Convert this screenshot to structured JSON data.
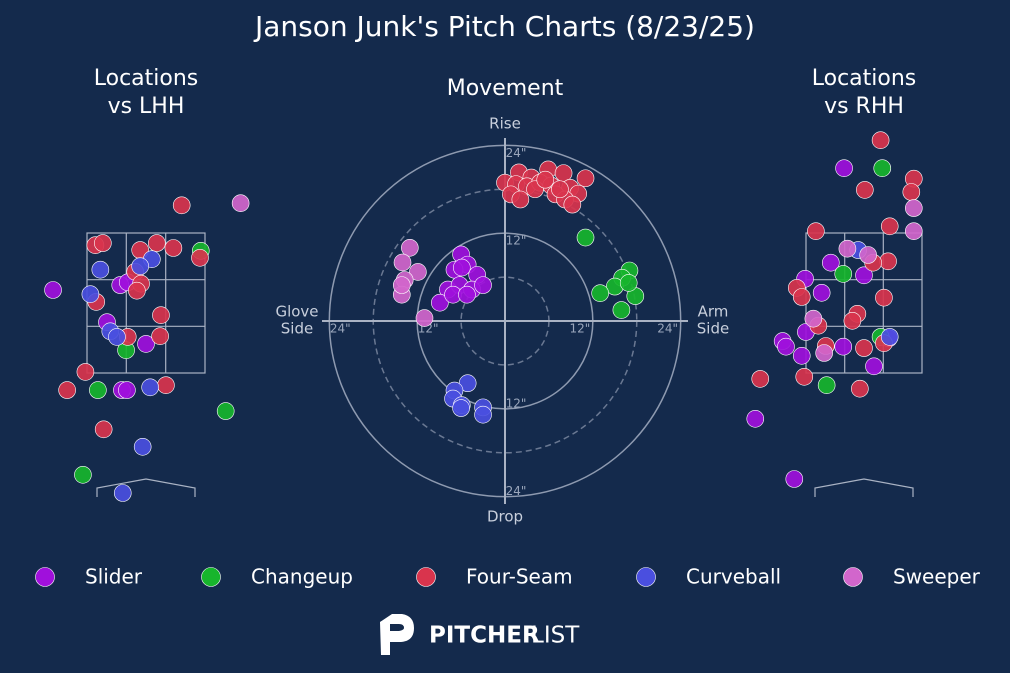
{
  "title": "Janson Junk's Pitch Charts (8/23/25)",
  "brand": [
    "PITCHER",
    "LIST"
  ],
  "chart_data": [
    {
      "type": "scatter",
      "title": [
        "Locations",
        "vs LHH"
      ],
      "xlim": [
        -1.3,
        1.3
      ],
      "ylim": [
        -0.3,
        5
      ],
      "series": [
        {
          "name": "Slider",
          "color": "#a010dc",
          "x": [
            -1.12,
            -0.31,
            -0.22,
            -0.47,
            0.0,
            -0.29,
            -0.23
          ],
          "y": [
            2.7,
            2.77,
            2.81,
            2.24,
            1.93,
            1.27,
            1.27
          ]
        },
        {
          "name": "Changeup",
          "color": "#17b52c",
          "x": [
            0.66,
            -0.24,
            -0.58,
            0.96,
            -0.76
          ],
          "y": [
            3.26,
            1.84,
            1.27,
            0.97,
            0.06
          ]
        },
        {
          "name": "Four-Seam",
          "color": "#d9344d",
          "x": [
            0.43,
            -0.61,
            -0.52,
            0.13,
            0.33,
            -0.07,
            0.65,
            -0.13,
            -0.06,
            -0.11,
            -0.6,
            0.18,
            -0.22,
            0.17,
            -0.73,
            -0.95,
            0.24,
            -0.51
          ],
          "y": [
            3.91,
            3.34,
            3.37,
            3.37,
            3.3,
            3.27,
            3.16,
            2.96,
            2.79,
            2.69,
            2.53,
            2.34,
            2.03,
            2.04,
            1.53,
            1.27,
            1.34,
            0.71
          ]
        },
        {
          "name": "Curveball",
          "color": "#4a4fdf",
          "x": [
            -0.55,
            0.07,
            -0.07,
            -0.67,
            -0.43,
            -0.35,
            0.05,
            -0.04,
            -0.28
          ],
          "y": [
            2.99,
            3.14,
            3.04,
            2.64,
            2.11,
            2.03,
            1.31,
            0.46,
            -0.2
          ]
        },
        {
          "name": "Sweeper",
          "color": "#d266cc",
          "x": [
            1.14
          ],
          "y": [
            3.94
          ]
        }
      ]
    },
    {
      "type": "movement",
      "title": [
        "Movement"
      ],
      "rlim": [
        0,
        25
      ],
      "rticks": [
        {
          "value": 12,
          "label": "12\""
        },
        {
          "value": 24,
          "label": "24\""
        }
      ],
      "minor_rticks": [
        6,
        18
      ],
      "labels": {
        "top": "Rise",
        "bottom": "Drop",
        "left": [
          "Glove",
          "Side"
        ],
        "right": [
          "Arm",
          "Side"
        ]
      },
      "series": [
        {
          "name": "Slider",
          "color": "#a010dc",
          "x": [
            -6.0,
            -5.1,
            -6.9,
            -3.8,
            -5.9,
            -7.8,
            -6.2,
            -4.5,
            -3.0,
            -8.9,
            -7.1,
            -5.2
          ],
          "y": [
            9.1,
            7.7,
            7.0,
            6.3,
            7.3,
            4.3,
            4.9,
            4.3,
            4.9,
            2.5,
            3.6,
            3.6
          ]
        },
        {
          "name": "Changeup",
          "color": "#17b52c",
          "x": [
            11.0,
            17.0,
            16.0,
            15.0,
            13.0,
            17.8,
            15.9,
            16.9
          ],
          "y": [
            11.4,
            6.9,
            5.9,
            4.7,
            3.8,
            3.4,
            1.5,
            5.2
          ]
        },
        {
          "name": "Four-Seam",
          "color": "#d9344d",
          "x": [
            0,
            1.9,
            3.6,
            5.9,
            8.0,
            11.0,
            1.5,
            3.0,
            4.8,
            6.3,
            8.9,
            10.0,
            0.8,
            2.1,
            4.1,
            6.9,
            8.2,
            9.2,
            5.5,
            7.5
          ],
          "y": [
            18.9,
            20.3,
            19.6,
            20.7,
            20.2,
            19.5,
            18.7,
            18.4,
            18.9,
            18.5,
            18.2,
            17.4,
            17.3,
            16.6,
            18.0,
            17.3,
            16.6,
            15.9,
            19.3,
            18.0
          ]
        },
        {
          "name": "Curveball",
          "color": "#4a4fdf",
          "x": [
            -5.1,
            -6.9,
            -7.1,
            -5.9,
            -3.0,
            -6.0,
            -3.0
          ],
          "y": [
            -8.5,
            -9.5,
            -10.6,
            -11.5,
            -11.8,
            -11.9,
            -12.8
          ]
        },
        {
          "name": "Sweeper",
          "color": "#d266cc",
          "x": [
            -13.0,
            -14.0,
            -11.9,
            -13.7,
            -14.1,
            -11.0,
            -14.1
          ],
          "y": [
            10.0,
            8.0,
            6.7,
            5.6,
            3.6,
            0.4,
            4.9
          ]
        }
      ]
    },
    {
      "type": "scatter",
      "title": [
        "Locations",
        "vs RHH"
      ],
      "xlim": [
        -1.3,
        1.3
      ],
      "ylim": [
        -0.3,
        5
      ],
      "series": [
        {
          "name": "Slider",
          "color": "#a010dc",
          "x": [
            -0.24,
            -0.4,
            0.0,
            -0.71,
            -0.51,
            -0.7,
            -0.98,
            -0.94,
            -0.75,
            -0.25,
            0.12,
            -1.31,
            -0.84,
            0.3
          ],
          "y": [
            4.44,
            3.09,
            2.91,
            2.86,
            2.66,
            2.1,
            1.97,
            1.89,
            1.76,
            1.89,
            1.61,
            0.86,
            0.0,
            2.01
          ]
        },
        {
          "name": "Changeup",
          "color": "#17b52c",
          "x": [
            0.22,
            -0.25,
            0.2,
            -0.45
          ],
          "y": [
            4.44,
            2.93,
            2.03,
            1.34
          ]
        },
        {
          "name": "Four-Seam",
          "color": "#d9344d",
          "x": [
            0.2,
            0.6,
            0.01,
            0.57,
            0.31,
            -0.58,
            0.29,
            0.11,
            -0.81,
            -0.75,
            0.24,
            -0.08,
            -0.14,
            -0.55,
            -0.46,
            0.0,
            0.24,
            -1.25,
            -0.72,
            -0.05
          ],
          "y": [
            4.84,
            4.29,
            4.13,
            4.1,
            3.61,
            3.54,
            3.11,
            3.09,
            2.73,
            2.6,
            2.59,
            2.36,
            2.26,
            2.19,
            1.9,
            1.87,
            1.94,
            1.43,
            1.46,
            1.29
          ]
        },
        {
          "name": "Curveball",
          "color": "#4a4fdf",
          "x": [
            -0.07,
            0.31
          ],
          "y": [
            3.27,
            2.03
          ]
        },
        {
          "name": "Sweeper",
          "color": "#d266cc",
          "x": [
            0.6,
            0.6,
            -0.2,
            0.05,
            -0.61,
            -0.48
          ],
          "y": [
            3.87,
            3.54,
            3.29,
            3.2,
            2.29,
            1.8
          ]
        }
      ]
    }
  ]
}
